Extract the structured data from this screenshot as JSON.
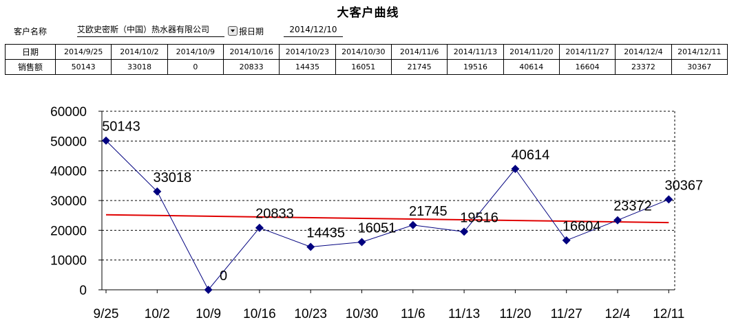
{
  "header": {
    "title": "大客户曲线",
    "customer_label": "客户名称",
    "customer_value": "艾欧史密斯（中国）热水器有限公司",
    "report_date_label": "报日期",
    "report_date_value": "2014/12/10"
  },
  "table": {
    "date_label": "日期",
    "sales_label": "销售额",
    "dates": [
      "2014/9/25",
      "2014/10/2",
      "2014/10/9",
      "2014/10/16",
      "2014/10/23",
      "2014/10/30",
      "2014/11/6",
      "2014/11/13",
      "2014/11/20",
      "2014/11/27",
      "2014/12/4",
      "2014/12/11"
    ],
    "sales": [
      "50143",
      "33018",
      "0",
      "20833",
      "14435",
      "16051",
      "21745",
      "19516",
      "40614",
      "16604",
      "23372",
      "30367"
    ]
  },
  "chart_data": {
    "type": "line",
    "title": "",
    "xlabel": "",
    "ylabel": "",
    "categories": [
      "9/25",
      "10/2",
      "10/9",
      "10/16",
      "10/23",
      "10/30",
      "11/6",
      "11/13",
      "11/20",
      "11/27",
      "12/4",
      "12/11"
    ],
    "series": [
      {
        "values": [
          50143,
          33018,
          0,
          20833,
          14435,
          16051,
          21745,
          19516,
          40614,
          16604,
          23372,
          30367
        ],
        "color": "#00007f",
        "marker": "diamond",
        "data_labels": true
      }
    ],
    "trendline": {
      "type": "linear",
      "color": "#e00000"
    },
    "ylim": [
      0,
      60000
    ],
    "yticks": [
      0,
      10000,
      20000,
      30000,
      40000,
      50000,
      60000
    ],
    "grid": "horizontal-dashed",
    "legend": "none"
  }
}
